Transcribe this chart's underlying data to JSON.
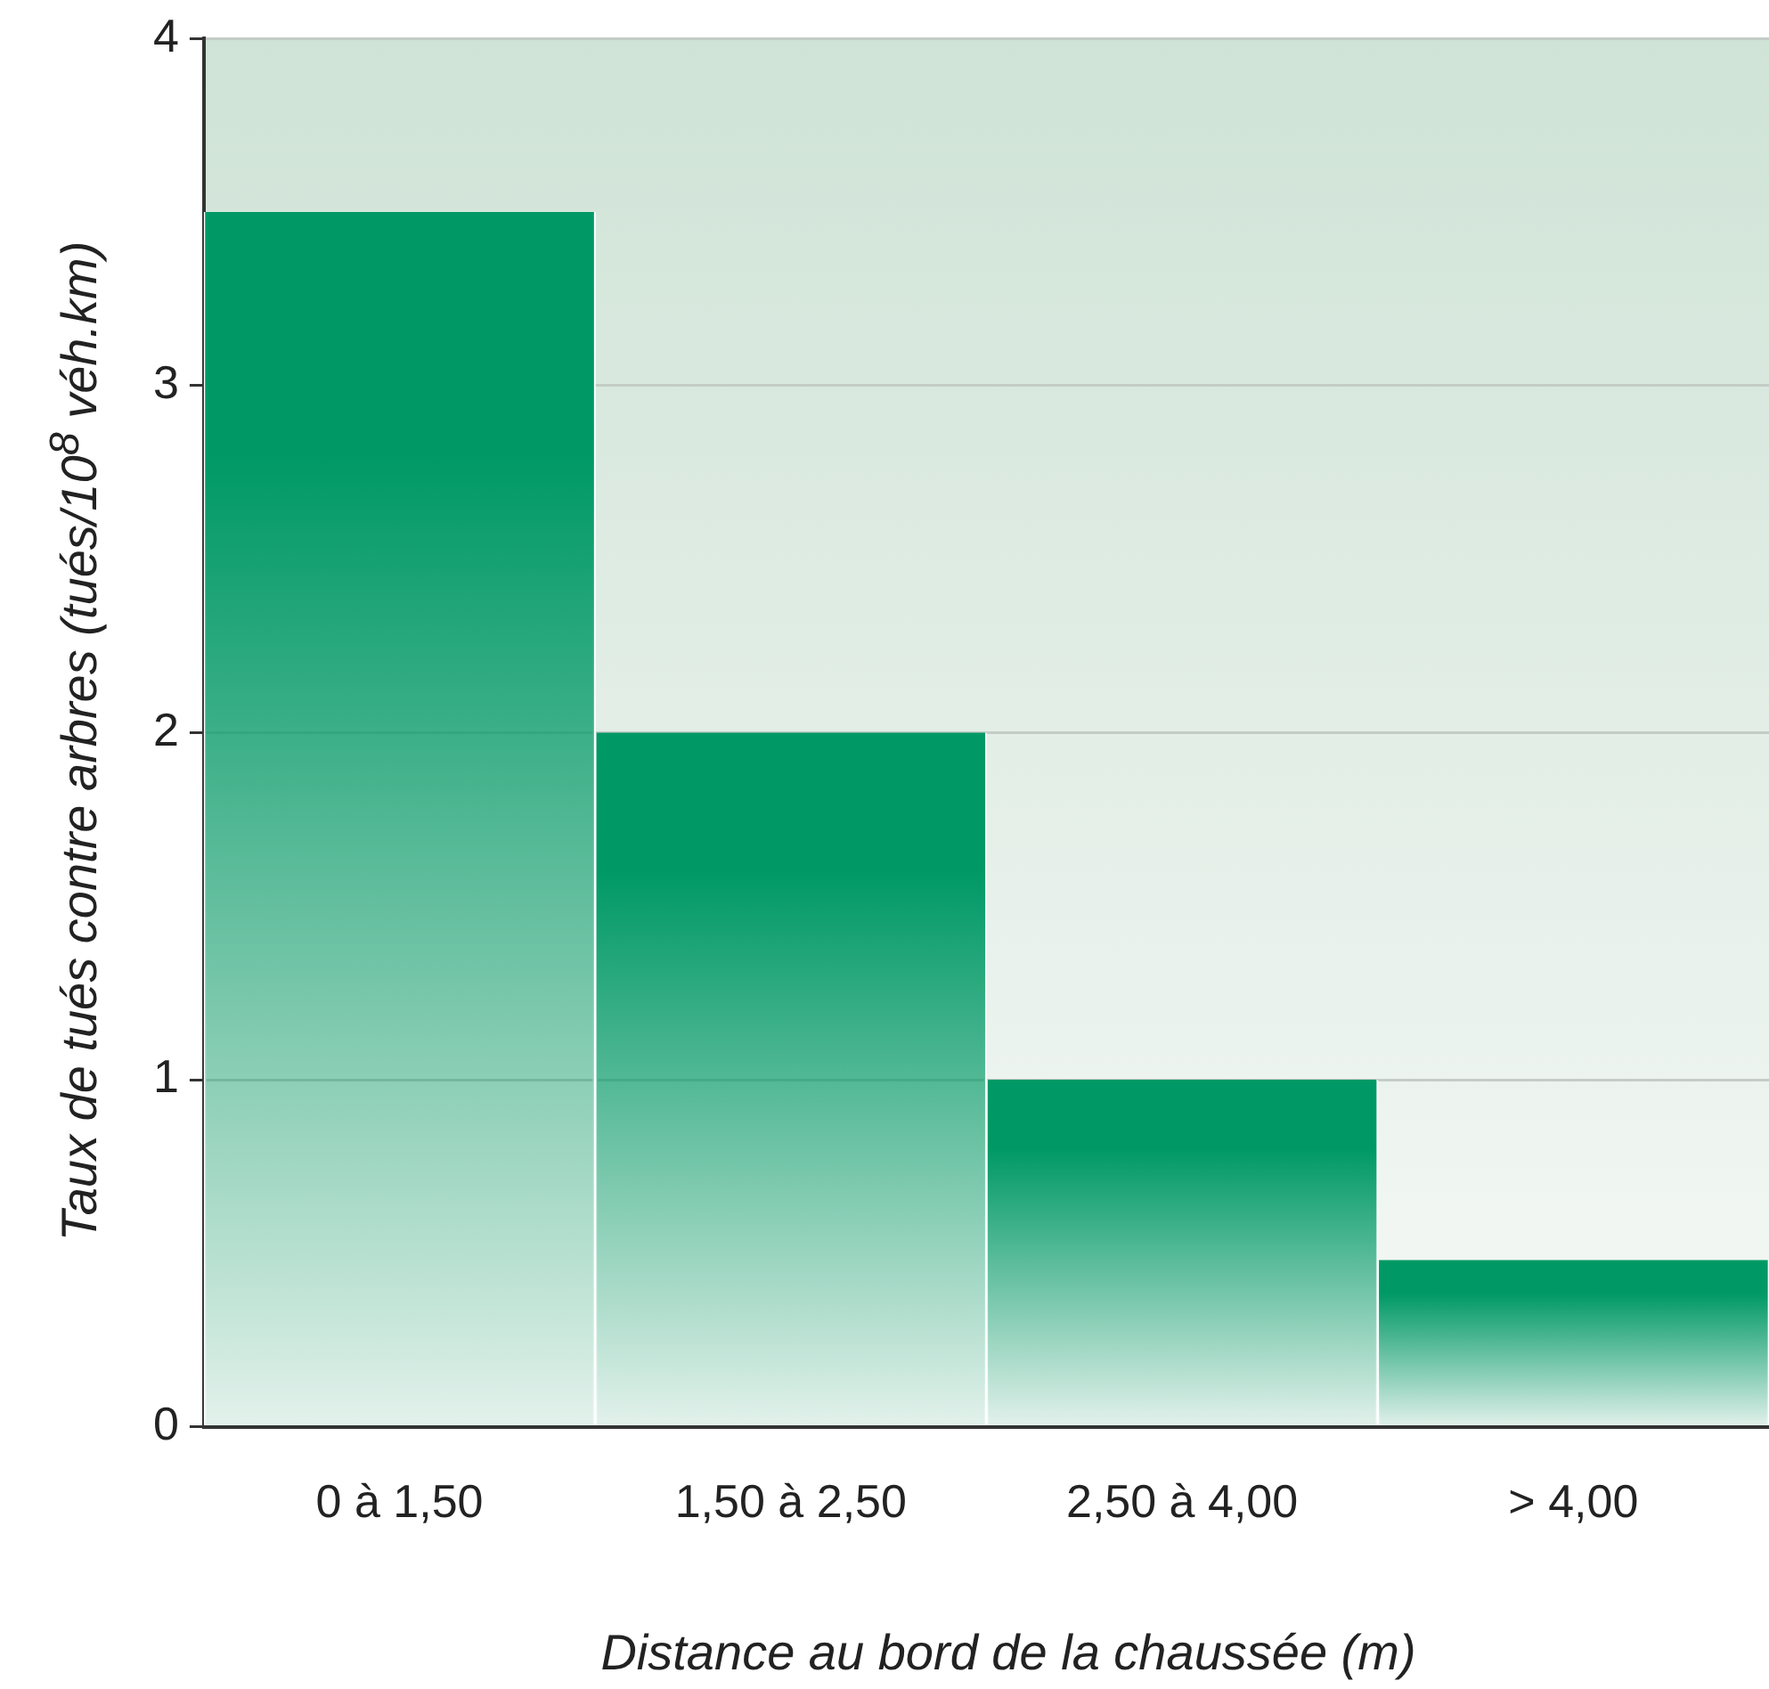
{
  "chart_data": {
    "type": "bar",
    "xlabel": "Distance au bord de la chaussée (m)",
    "ylabel": "Taux de tués contre arbres (tués/10$^{8}$ véh.km)",
    "categories": [
      "0 à 1,50",
      "1,50 à 2,50",
      "2,50 à 4,00",
      "> 4,00"
    ],
    "values": [
      3.5,
      2,
      1,
      0.48
    ],
    "color": "#009966",
    "ylim": [
      0,
      4
    ],
    "yticks": [
      0,
      1,
      2,
      3,
      4
    ],
    "grid": "y",
    "legend": false
  }
}
